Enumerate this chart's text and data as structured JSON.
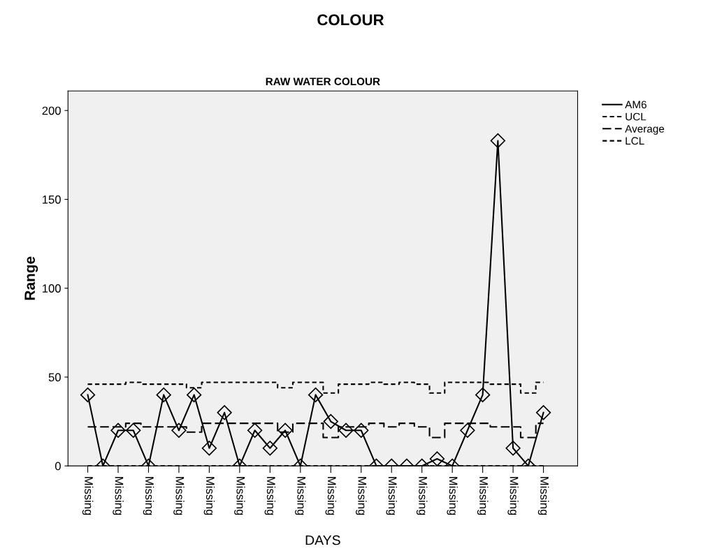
{
  "chart_data": {
    "type": "line",
    "title": "COLOUR",
    "subtitle": "RAW WATER COLOUR",
    "xlabel": "DAYS",
    "ylabel": "Range",
    "categories": [
      "Missing",
      null,
      "Missing",
      null,
      "Missing",
      null,
      "Missing",
      null,
      "Missing",
      null,
      "Missing",
      null,
      "Missing",
      null,
      "Missing",
      null,
      "Missing",
      null,
      "Missing",
      null,
      "Missing",
      null,
      "Missing",
      null,
      "Missing",
      null,
      "Missing",
      null,
      "Missing",
      null,
      "Missing"
    ],
    "series": [
      {
        "name": "AM6",
        "color": "#000000",
        "marker": "diamond",
        "line_style": "solid",
        "values": [
          40,
          0,
          20,
          20,
          0,
          40,
          20,
          40,
          10,
          30,
          0,
          20,
          10,
          20,
          0,
          40,
          25,
          20,
          20,
          0,
          0,
          0,
          0,
          4,
          0,
          20,
          40,
          183,
          10,
          0,
          30
        ]
      },
      {
        "name": "UCL",
        "type": "step",
        "color": "#000000",
        "marker": "none",
        "line_style": "dashed",
        "values": [
          46,
          46,
          46,
          47,
          46,
          46,
          46,
          44,
          47,
          47,
          47,
          47,
          47,
          44,
          47,
          47,
          41,
          46,
          46,
          47,
          46,
          47,
          46,
          41,
          47,
          47,
          47,
          46,
          46,
          41,
          47
        ]
      },
      {
        "name": "Average",
        "type": "step",
        "color": "#000000",
        "marker": "none",
        "line_style": "dashed",
        "values": [
          22,
          22,
          22,
          24,
          22,
          22,
          22,
          19,
          24,
          24,
          24,
          24,
          24,
          19,
          24,
          24,
          16,
          22,
          22,
          24,
          22,
          24,
          22,
          16,
          24,
          24,
          24,
          22,
          22,
          16,
          24
        ]
      },
      {
        "name": "LCL",
        "type": "step",
        "color": "#000000",
        "marker": "none",
        "line_style": "dashed",
        "values": [
          0,
          0,
          0,
          0,
          0,
          0,
          0,
          0,
          0,
          0,
          0,
          0,
          0,
          0,
          0,
          0,
          0,
          0,
          0,
          0,
          0,
          0,
          0,
          0,
          0,
          0,
          0,
          0,
          0,
          0,
          0
        ]
      }
    ],
    "ylim": [
      0,
      211
    ],
    "yticks": [
      0,
      50,
      100,
      150,
      200
    ],
    "grid": false,
    "legend": "top right"
  }
}
